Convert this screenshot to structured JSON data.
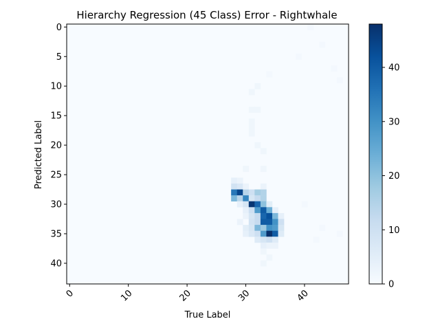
{
  "chart_data": {
    "type": "heatmap",
    "title": "Hierarchy Regression (45 Class) Error - Rightwhale",
    "xlabel": "True Label",
    "ylabel": "Predicted Label",
    "x_ticks": [
      0,
      10,
      20,
      30,
      40
    ],
    "y_ticks": [
      0,
      5,
      10,
      15,
      20,
      25,
      30,
      35,
      40
    ],
    "x_range": [
      0,
      47
    ],
    "y_range": [
      0,
      43
    ],
    "colorbar": {
      "ticks": [
        0,
        10,
        20,
        30,
        40
      ],
      "vmin": 0,
      "vmax": 48,
      "colormap": "Blues"
    },
    "colors": {
      "low": "#f7fbff",
      "high": "#08306b"
    },
    "cells": [
      {
        "x": 28,
        "y": 26,
        "v": 4
      },
      {
        "x": 29,
        "y": 26,
        "v": 3
      },
      {
        "x": 28,
        "y": 27,
        "v": 9
      },
      {
        "x": 29,
        "y": 27,
        "v": 7
      },
      {
        "x": 30,
        "y": 27,
        "v": 3
      },
      {
        "x": 33,
        "y": 27,
        "v": 3
      },
      {
        "x": 28,
        "y": 28,
        "v": 35
      },
      {
        "x": 29,
        "y": 28,
        "v": 44
      },
      {
        "x": 30,
        "y": 28,
        "v": 14
      },
      {
        "x": 31,
        "y": 28,
        "v": 10
      },
      {
        "x": 32,
        "y": 28,
        "v": 17
      },
      {
        "x": 33,
        "y": 28,
        "v": 15
      },
      {
        "x": 28,
        "y": 29,
        "v": 22
      },
      {
        "x": 29,
        "y": 29,
        "v": 14
      },
      {
        "x": 30,
        "y": 29,
        "v": 32
      },
      {
        "x": 31,
        "y": 29,
        "v": 8
      },
      {
        "x": 32,
        "y": 29,
        "v": 12
      },
      {
        "x": 33,
        "y": 29,
        "v": 15
      },
      {
        "x": 29,
        "y": 30,
        "v": 4
      },
      {
        "x": 30,
        "y": 30,
        "v": 8
      },
      {
        "x": 31,
        "y": 30,
        "v": 47
      },
      {
        "x": 32,
        "y": 30,
        "v": 38
      },
      {
        "x": 33,
        "y": 30,
        "v": 20
      },
      {
        "x": 34,
        "y": 30,
        "v": 5
      },
      {
        "x": 30,
        "y": 31,
        "v": 4
      },
      {
        "x": 31,
        "y": 31,
        "v": 10
      },
      {
        "x": 32,
        "y": 31,
        "v": 28
      },
      {
        "x": 33,
        "y": 31,
        "v": 40
      },
      {
        "x": 34,
        "y": 31,
        "v": 24
      },
      {
        "x": 35,
        "y": 31,
        "v": 4
      },
      {
        "x": 30,
        "y": 32,
        "v": 3
      },
      {
        "x": 31,
        "y": 32,
        "v": 8
      },
      {
        "x": 32,
        "y": 32,
        "v": 12
      },
      {
        "x": 33,
        "y": 32,
        "v": 38
      },
      {
        "x": 34,
        "y": 32,
        "v": 42
      },
      {
        "x": 35,
        "y": 32,
        "v": 22
      },
      {
        "x": 36,
        "y": 32,
        "v": 4
      },
      {
        "x": 29,
        "y": 33,
        "v": 3
      },
      {
        "x": 31,
        "y": 33,
        "v": 9
      },
      {
        "x": 32,
        "y": 33,
        "v": 12
      },
      {
        "x": 33,
        "y": 33,
        "v": 40
      },
      {
        "x": 34,
        "y": 33,
        "v": 40
      },
      {
        "x": 35,
        "y": 33,
        "v": 30
      },
      {
        "x": 36,
        "y": 33,
        "v": 10
      },
      {
        "x": 30,
        "y": 34,
        "v": 5
      },
      {
        "x": 31,
        "y": 34,
        "v": 8
      },
      {
        "x": 32,
        "y": 34,
        "v": 22
      },
      {
        "x": 33,
        "y": 34,
        "v": 18
      },
      {
        "x": 34,
        "y": 34,
        "v": 30
      },
      {
        "x": 35,
        "y": 34,
        "v": 28
      },
      {
        "x": 36,
        "y": 34,
        "v": 8
      },
      {
        "x": 30,
        "y": 35,
        "v": 4
      },
      {
        "x": 31,
        "y": 35,
        "v": 7
      },
      {
        "x": 32,
        "y": 35,
        "v": 10
      },
      {
        "x": 33,
        "y": 35,
        "v": 28
      },
      {
        "x": 34,
        "y": 35,
        "v": 48
      },
      {
        "x": 35,
        "y": 35,
        "v": 40
      },
      {
        "x": 36,
        "y": 35,
        "v": 6
      },
      {
        "x": 32,
        "y": 36,
        "v": 6
      },
      {
        "x": 33,
        "y": 36,
        "v": 8
      },
      {
        "x": 34,
        "y": 36,
        "v": 10
      },
      {
        "x": 35,
        "y": 36,
        "v": 6
      },
      {
        "x": 33,
        "y": 37,
        "v": 4
      },
      {
        "x": 34,
        "y": 37,
        "v": 3
      },
      {
        "x": 35,
        "y": 37,
        "v": 3
      },
      {
        "x": 33,
        "y": 38,
        "v": 2
      },
      {
        "x": 34,
        "y": 39,
        "v": 2
      },
      {
        "x": 33,
        "y": 40,
        "v": 2
      },
      {
        "x": 32,
        "y": 10,
        "v": 2
      },
      {
        "x": 31,
        "y": 11,
        "v": 2
      },
      {
        "x": 31,
        "y": 14,
        "v": 2
      },
      {
        "x": 32,
        "y": 14,
        "v": 2
      },
      {
        "x": 31,
        "y": 16,
        "v": 2
      },
      {
        "x": 31,
        "y": 17,
        "v": 2
      },
      {
        "x": 31,
        "y": 18,
        "v": 2
      },
      {
        "x": 32,
        "y": 20,
        "v": 2
      },
      {
        "x": 33,
        "y": 21,
        "v": 2
      },
      {
        "x": 30,
        "y": 24,
        "v": 2
      },
      {
        "x": 33,
        "y": 24,
        "v": 2
      },
      {
        "x": 41,
        "y": 0,
        "v": 1
      },
      {
        "x": 43,
        "y": 3,
        "v": 1
      },
      {
        "x": 39,
        "y": 5,
        "v": 1
      },
      {
        "x": 45,
        "y": 7,
        "v": 1
      },
      {
        "x": 34,
        "y": 8,
        "v": 1
      },
      {
        "x": 46,
        "y": 9,
        "v": 1
      },
      {
        "x": 40,
        "y": 30,
        "v": 1
      },
      {
        "x": 43,
        "y": 34,
        "v": 1
      },
      {
        "x": 46,
        "y": 35,
        "v": 1
      },
      {
        "x": 42,
        "y": 36,
        "v": 1
      }
    ]
  }
}
